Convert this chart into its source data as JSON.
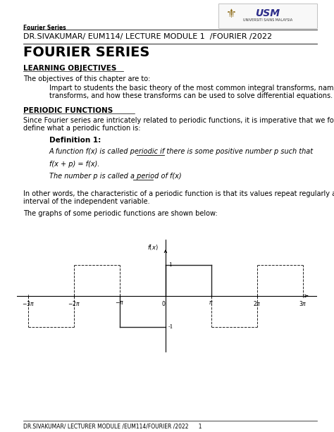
{
  "page_width": 4.74,
  "page_height": 6.13,
  "bg_color": "#ffffff",
  "header_left": "Fourier Series",
  "header_title": "DR.SIVAKUMAR/ EUM114/ LECTURE MODULE 1  /FOURIER /2022",
  "main_title": "FOURIER SERIES",
  "section1_title": "LEARNING OBJECTIVES",
  "section1_body1": "The objectives of this chapter are to:",
  "section1_indent_line1": "Impart to students the basic theory of the most common integral transforms, namely the Fourier",
  "section1_indent_line2": "transforms, and how these transforms can be used to solve differential equations.",
  "section2_title": "PERIODIC FUNCTIONS",
  "section2_body1_line1": "Since Fourier series are intricately related to periodic functions, it is imperative that we formally",
  "section2_body1_line2": "define what a periodic function is:",
  "def_title": "Definition 1:",
  "def_line1": "A function f(x) is called periodic if there is some positive number p such that",
  "def_line2": "f(x + p) = f(x).",
  "def_line3": "The number p is called a period of f(x)",
  "section2_body2_line1": "In other words, the characteristic of a periodic function is that its values repeat regularly at a constant",
  "section2_body2_line2": "interval of the independent variable.",
  "section2_body3": "The graphs of some periodic functions are shown below:",
  "footer_text": "DR.SIVAKUMAR/ LECTURER MODULE /EUM114/FOURIER /2022      1",
  "text_color": "#000000",
  "graph_ylabel": "f(x)"
}
